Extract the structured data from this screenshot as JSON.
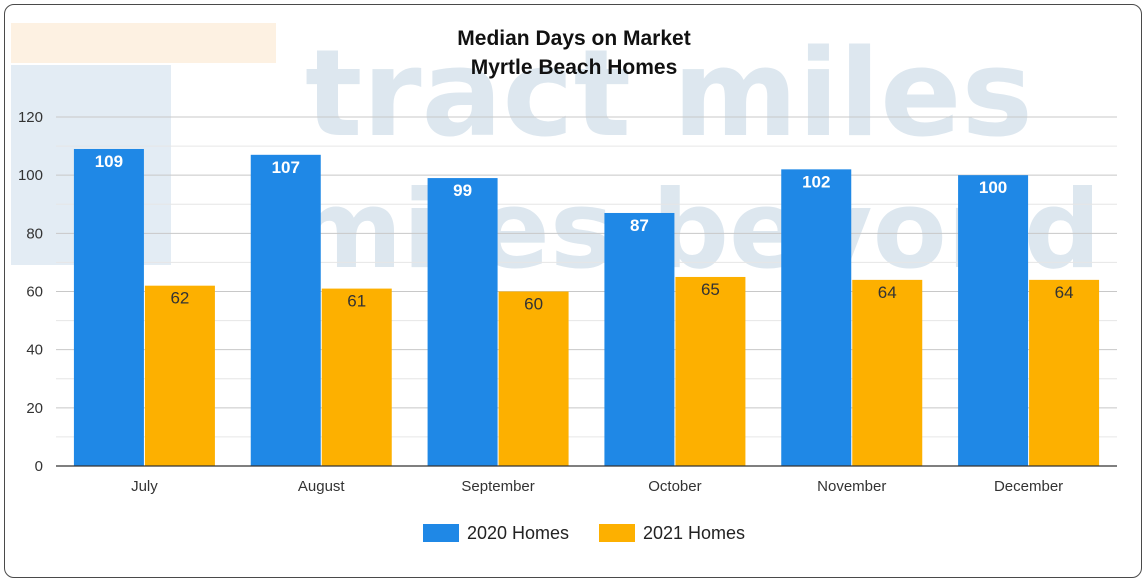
{
  "chart_data": {
    "type": "bar",
    "title": [
      "Median Days on Market",
      "Myrtle Beach Homes"
    ],
    "xlabel": "",
    "ylabel": "",
    "categories": [
      "July",
      "August",
      "September",
      "October",
      "November",
      "December"
    ],
    "series": [
      {
        "name": "2020 Homes",
        "color": "#1f88e6",
        "values": [
          109,
          107,
          99,
          87,
          102,
          100
        ]
      },
      {
        "name": "2021 Homes",
        "color": "#fdb000",
        "values": [
          62,
          61,
          60,
          65,
          64,
          64
        ]
      }
    ],
    "ylim": [
      0,
      120
    ],
    "yticks": [
      0,
      20,
      40,
      60,
      80,
      100,
      120
    ],
    "grid": true,
    "legend": "bottom-center",
    "watermark": [
      "tract miles",
      "miles beyond"
    ]
  }
}
